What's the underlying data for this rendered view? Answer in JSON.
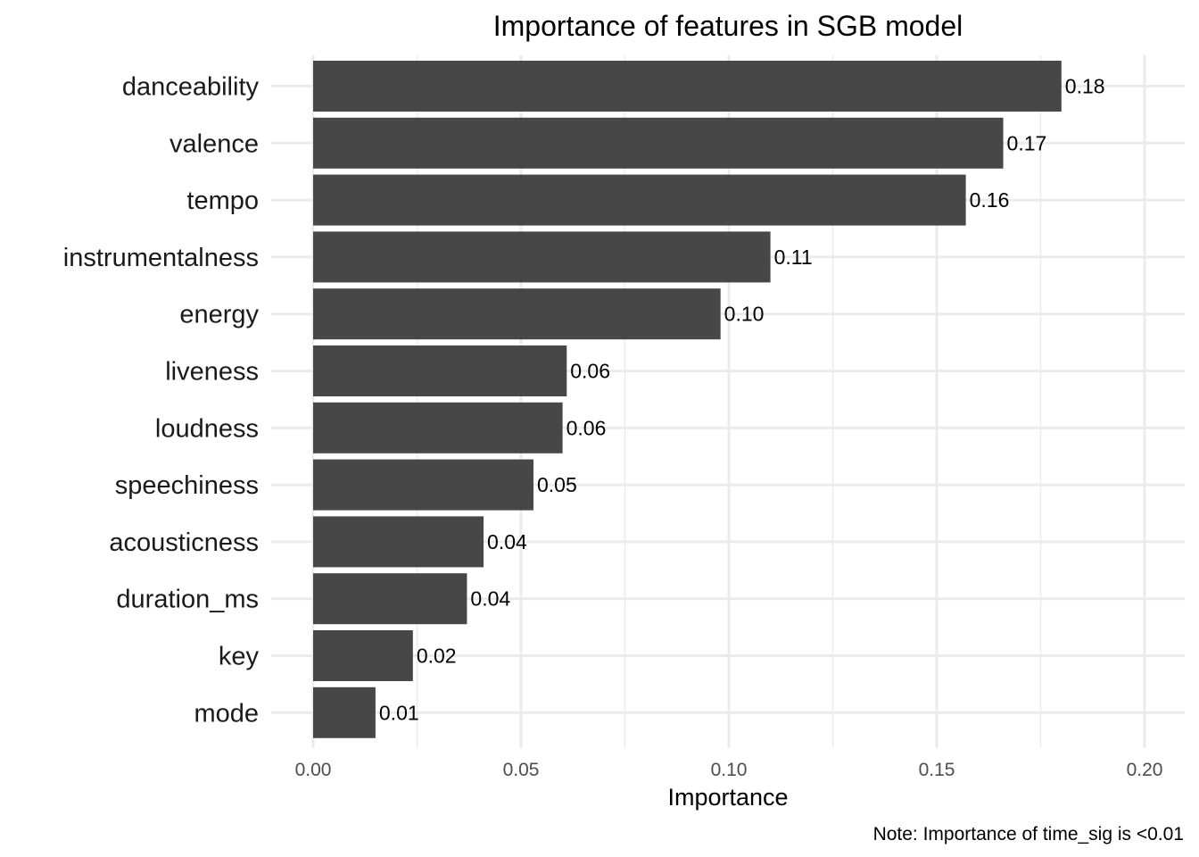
{
  "chart_data": {
    "type": "bar",
    "orientation": "horizontal",
    "title": "Importance of features in SGB model",
    "xlabel": "Importance",
    "ylabel": "",
    "caption": "Note: Importance of time_sig is <0.01",
    "categories": [
      "danceability",
      "valence",
      "tempo",
      "instrumentalness",
      "energy",
      "liveness",
      "loudness",
      "speechiness",
      "acousticness",
      "duration_ms",
      "key",
      "mode"
    ],
    "values": [
      0.18,
      0.166,
      0.157,
      0.11,
      0.098,
      0.061,
      0.06,
      0.053,
      0.041,
      0.037,
      0.024,
      0.015
    ],
    "value_labels": [
      "0.18",
      "0.17",
      "0.16",
      "0.11",
      "0.10",
      "0.06",
      "0.06",
      "0.05",
      "0.04",
      "0.04",
      "0.02",
      "0.01"
    ],
    "xlim": [
      0,
      0.2
    ],
    "xticks": [
      0.0,
      0.05,
      0.1,
      0.15,
      0.2
    ],
    "xtick_labels": [
      "0.00",
      "0.05",
      "0.10",
      "0.15",
      "0.20"
    ],
    "grid": true,
    "legend": "none",
    "bar_color": "#474747",
    "grid_color": "#ebebeb"
  }
}
